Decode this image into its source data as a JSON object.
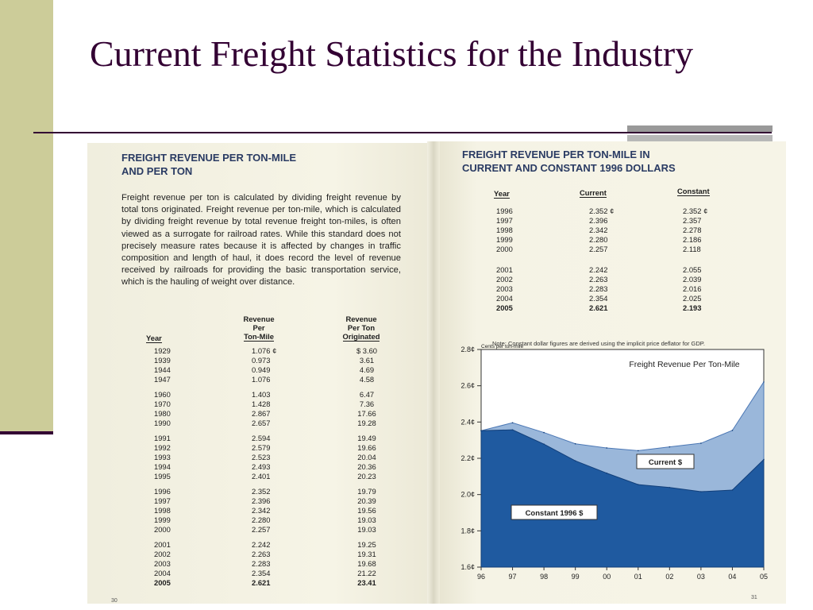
{
  "slide": {
    "title": "Current Freight Statistics for the Industry"
  },
  "left_page": {
    "heading": [
      "FREIGHT REVENUE PER TON-MILE",
      "AND PER TON"
    ],
    "paragraph": "Freight revenue per ton is calculated by dividing freight revenue by total tons originated. Freight revenue per ton-mile, which is calculated by dividing freight revenue by total revenue freight ton-miles, is often viewed as a surrogate for railroad rates. While this standard does not precisely measure rates because it is affected by changes in traffic composition and length of haul, it does record the level of revenue received by railroads for providing the basic transportation service, which is the hauling of weight over distance.",
    "columns": {
      "year": "Year",
      "per_ton_mile": [
        "Revenue",
        "Per",
        "Ton-Mile"
      ],
      "per_ton": [
        "Revenue",
        "Per Ton",
        "Originated"
      ]
    },
    "groups": [
      [
        [
          "1929",
          "1.076 ¢",
          "$ 3.60"
        ],
        [
          "1939",
          "0.973",
          "3.61"
        ],
        [
          "1944",
          "0.949",
          "4.69"
        ],
        [
          "1947",
          "1.076",
          "4.58"
        ]
      ],
      [
        [
          "1960",
          "1.403",
          "6.47"
        ],
        [
          "1970",
          "1.428",
          "7.36"
        ],
        [
          "1980",
          "2.867",
          "17.66"
        ],
        [
          "1990",
          "2.657",
          "19.28"
        ]
      ],
      [
        [
          "1991",
          "2.594",
          "19.49"
        ],
        [
          "1992",
          "2.579",
          "19.66"
        ],
        [
          "1993",
          "2.523",
          "20.04"
        ],
        [
          "1994",
          "2.493",
          "20.36"
        ],
        [
          "1995",
          "2.401",
          "20.23"
        ]
      ],
      [
        [
          "1996",
          "2.352",
          "19.79"
        ],
        [
          "1997",
          "2.396",
          "20.39"
        ],
        [
          "1998",
          "2.342",
          "19.56"
        ],
        [
          "1999",
          "2.280",
          "19.03"
        ],
        [
          "2000",
          "2.257",
          "19.03"
        ]
      ],
      [
        [
          "2001",
          "2.242",
          "19.25"
        ],
        [
          "2002",
          "2.263",
          "19.31"
        ],
        [
          "2003",
          "2.283",
          "19.68"
        ],
        [
          "2004",
          "2.354",
          "21.22"
        ],
        [
          "2005",
          "2.621",
          "23.41"
        ]
      ]
    ],
    "page_number": "30"
  },
  "right_page": {
    "heading": [
      "FREIGHT REVENUE PER TON-MILE IN",
      "CURRENT AND CONSTANT 1996 DOLLARS"
    ],
    "columns": {
      "year": "Year",
      "current": "Current",
      "constant": "Constant"
    },
    "groups": [
      [
        [
          "1996",
          "2.352 ¢",
          "2.352 ¢"
        ],
        [
          "1997",
          "2.396",
          "2.357"
        ],
        [
          "1998",
          "2.342",
          "2.278"
        ],
        [
          "1999",
          "2.280",
          "2.186"
        ],
        [
          "2000",
          "2.257",
          "2.118"
        ]
      ],
      [
        [
          "2001",
          "2.242",
          "2.055"
        ],
        [
          "2002",
          "2.263",
          "2.039"
        ],
        [
          "2003",
          "2.283",
          "2.016"
        ],
        [
          "2004",
          "2.354",
          "2.025"
        ],
        [
          "2005",
          "2.621",
          "2.193"
        ]
      ]
    ],
    "note": "Note: Constant dollar figures are derived using the implicit price deflator for GDP.",
    "page_number": "31"
  },
  "chart_data": {
    "type": "area",
    "title": "Freight Revenue Per Ton-Mile",
    "ylabel": "Cents per ton-mile",
    "x": [
      "96",
      "97",
      "98",
      "99",
      "00",
      "01",
      "02",
      "03",
      "04",
      "05"
    ],
    "ylim": [
      1.6,
      2.8
    ],
    "yticks": [
      "1.6¢",
      "1.8¢",
      "2.0¢",
      "2.2¢",
      "2.4¢",
      "2.6¢",
      "2.8¢"
    ],
    "series": [
      {
        "name": "Current $",
        "values": [
          2.352,
          2.396,
          2.342,
          2.28,
          2.257,
          2.242,
          2.263,
          2.283,
          2.354,
          2.621
        ],
        "color": "#9ab7da"
      },
      {
        "name": "Constant 1996 $",
        "values": [
          2.352,
          2.357,
          2.278,
          2.186,
          2.118,
          2.055,
          2.039,
          2.016,
          2.025,
          2.193
        ],
        "color": "#1f5aa0"
      }
    ],
    "grid": false
  }
}
